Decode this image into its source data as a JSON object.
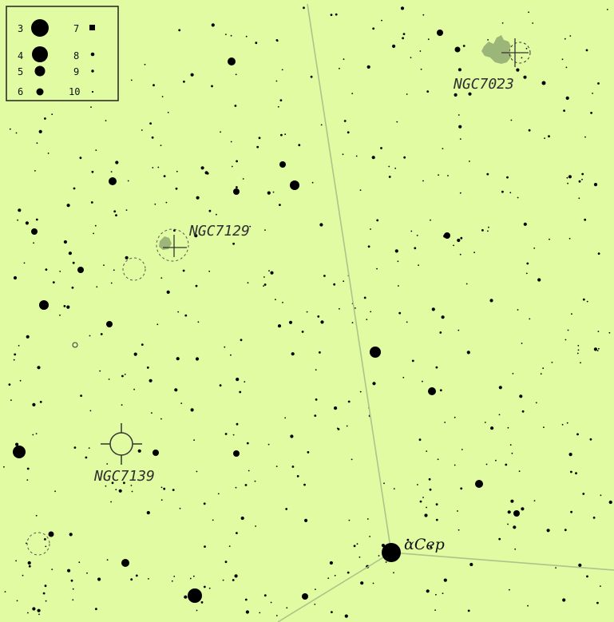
{
  "map": {
    "background": "#e1fba3",
    "line_color": "#a9c58a",
    "star_color": "#000000",
    "nebula_color": "#8fa872"
  },
  "legend": {
    "entries": [
      {
        "mag": "3"
      },
      {
        "mag": "4"
      },
      {
        "mag": "5"
      },
      {
        "mag": "6"
      },
      {
        "mag": "7"
      },
      {
        "mag": "8"
      },
      {
        "mag": "9"
      },
      {
        "mag": "10"
      }
    ]
  },
  "objects": {
    "ngc7023": {
      "label": "NGC7023",
      "type": "reflection-nebula"
    },
    "ngc7129": {
      "label": "NGC7129",
      "type": "open-cluster-nebula"
    },
    "ngc7139": {
      "label": "NGC7139",
      "type": "planetary-nebula"
    }
  },
  "stars": {
    "alpha_cep": {
      "label": "αCep"
    }
  }
}
